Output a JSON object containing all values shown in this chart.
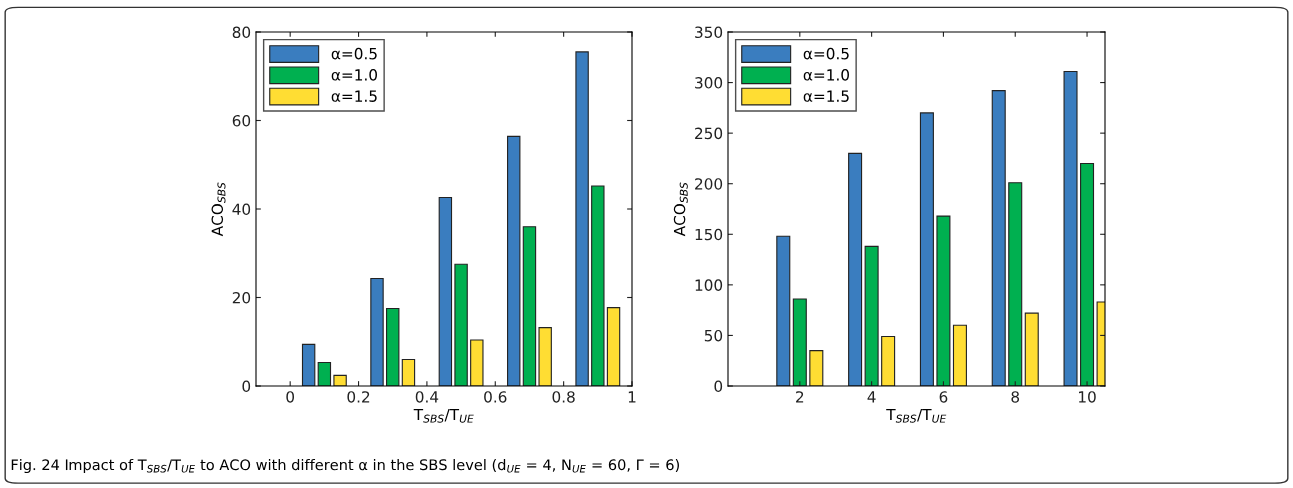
{
  "chart_data": [
    {
      "type": "bar",
      "x": [
        0.1,
        0.3,
        0.5,
        0.7,
        0.9
      ],
      "xlabel": "T$_{SBS}$/T$_{UE}$",
      "ylabel": "ACO$_{SBS}$",
      "xlim": [
        -0.1,
        1
      ],
      "xticks": [
        0,
        0.2,
        0.4,
        0.6,
        0.8,
        1
      ],
      "ylim": [
        0,
        80
      ],
      "yticks": [
        0,
        20,
        40,
        60,
        80
      ],
      "legend": "top left",
      "grid": false,
      "series": [
        {
          "name": "α=0.5",
          "color": "#3a7dbf",
          "values": [
            9.4,
            24.3,
            42.6,
            56.4,
            75.5
          ]
        },
        {
          "name": "α=1.0",
          "color": "#00b050",
          "values": [
            5.3,
            17.5,
            27.5,
            36.0,
            45.2
          ]
        },
        {
          "name": "α=1.5",
          "color": "#ffdd33",
          "values": [
            2.4,
            6.0,
            10.4,
            13.2,
            17.7
          ]
        }
      ],
      "annotations": [
        "Fig. 24 Impact of T$_{SBS}$/T$_{UE}$ to ACO with different α in the SBS level (d$_{UE}$ = 4, N$_{UE}$ = 60, Γ = 6)"
      ]
    },
    {
      "type": "bar",
      "x": [
        2,
        4,
        6,
        8,
        10
      ],
      "xlabel": "T$_{SBS}$/T$_{UE}$",
      "ylabel": "ACO$_{SBS}$",
      "xlim": [
        0,
        10.5
      ],
      "xticks": [
        2,
        4,
        6,
        8,
        10
      ],
      "ylim": [
        0,
        350
      ],
      "yticks": [
        0,
        50,
        100,
        150,
        200,
        250,
        300,
        350
      ],
      "legend": "top left",
      "grid": false,
      "series": [
        {
          "name": "α=0.5",
          "color": "#3a7dbf",
          "values": [
            148,
            230,
            270,
            292,
            311
          ]
        },
        {
          "name": "α=1.0",
          "color": "#00b050",
          "values": [
            86,
            138,
            168,
            201,
            220
          ]
        },
        {
          "name": "α=1.5",
          "color": "#ffdd33",
          "values": [
            35,
            49,
            60,
            72,
            83
          ]
        }
      ]
    }
  ]
}
